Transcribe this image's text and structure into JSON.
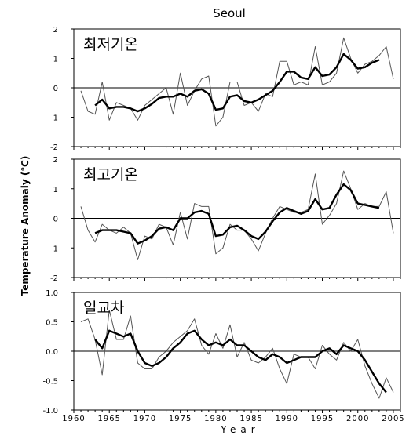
{
  "chart_data": {
    "type": "line",
    "title": "Seoul",
    "xlabel": "Year",
    "ylabel": "Temperature Anomaly (℃)",
    "x_ticks": [
      "1960",
      "1965",
      "1970",
      "1975",
      "1980",
      "1985",
      "1990",
      "1995",
      "2000",
      "2005"
    ],
    "xlim": [
      1960,
      2006
    ],
    "panels": [
      {
        "label": "최저기온",
        "ylim": [
          -2,
          2
        ],
        "y_ticks": [
          "2",
          "1",
          "0",
          "-1",
          "-2"
        ],
        "series": [
          {
            "style": "raw",
            "x": [
              1961,
              1962,
              1963,
              1964,
              1965,
              1966,
              1967,
              1968,
              1969,
              1970,
              1971,
              1972,
              1973,
              1974,
              1975,
              1976,
              1977,
              1978,
              1979,
              1980,
              1981,
              1982,
              1983,
              1984,
              1985,
              1986,
              1987,
              1988,
              1989,
              1990,
              1991,
              1992,
              1993,
              1994,
              1995,
              1996,
              1997,
              1998,
              1999,
              2000,
              2001,
              2002,
              2003,
              2004,
              2005
            ],
            "y": [
              -0.1,
              -0.8,
              -0.9,
              0.2,
              -1.1,
              -0.5,
              -0.6,
              -0.7,
              -1.1,
              -0.6,
              -0.4,
              -0.2,
              0.0,
              -0.9,
              0.5,
              -0.6,
              -0.1,
              0.3,
              0.4,
              -1.3,
              -1.0,
              0.2,
              0.2,
              -0.6,
              -0.5,
              -0.8,
              -0.2,
              -0.3,
              0.9,
              0.9,
              0.1,
              0.2,
              0.1,
              1.4,
              0.1,
              0.2,
              0.5,
              1.7,
              1.0,
              0.5,
              0.8,
              0.9,
              1.1,
              1.4,
              0.3
            ]
          },
          {
            "style": "smoothed",
            "x": [
              1963,
              1964,
              1965,
              1966,
              1967,
              1968,
              1969,
              1970,
              1971,
              1972,
              1973,
              1974,
              1975,
              1976,
              1977,
              1978,
              1979,
              1980,
              1981,
              1982,
              1983,
              1984,
              1985,
              1986,
              1987,
              1988,
              1989,
              1990,
              1991,
              1992,
              1993,
              1994,
              1995,
              1996,
              1997,
              1998,
              1999,
              2000,
              2001,
              2002,
              2003
            ],
            "y": [
              -0.6,
              -0.4,
              -0.7,
              -0.65,
              -0.65,
              -0.7,
              -0.8,
              -0.7,
              -0.55,
              -0.35,
              -0.3,
              -0.3,
              -0.2,
              -0.3,
              -0.1,
              -0.05,
              -0.2,
              -0.75,
              -0.7,
              -0.3,
              -0.25,
              -0.45,
              -0.5,
              -0.4,
              -0.25,
              -0.1,
              0.2,
              0.55,
              0.55,
              0.35,
              0.3,
              0.7,
              0.4,
              0.45,
              0.7,
              1.15,
              0.95,
              0.65,
              0.7,
              0.85,
              0.95
            ]
          }
        ]
      },
      {
        "label": "최고기온",
        "ylim": [
          -2,
          2
        ],
        "y_ticks": [
          "2",
          "1",
          "0",
          "-1",
          "-2"
        ],
        "series": [
          {
            "style": "raw",
            "x": [
              1961,
              1962,
              1963,
              1964,
              1965,
              1966,
              1967,
              1968,
              1969,
              1970,
              1971,
              1972,
              1973,
              1974,
              1975,
              1976,
              1977,
              1978,
              1979,
              1980,
              1981,
              1982,
              1983,
              1984,
              1985,
              1986,
              1987,
              1988,
              1989,
              1990,
              1991,
              1992,
              1993,
              1994,
              1995,
              1996,
              1997,
              1998,
              1999,
              2000,
              2001,
              2002,
              2003,
              2004,
              2005
            ],
            "y": [
              0.4,
              -0.4,
              -0.8,
              -0.2,
              -0.4,
              -0.5,
              -0.3,
              -0.5,
              -1.4,
              -0.6,
              -0.7,
              -0.2,
              -0.3,
              -0.9,
              0.2,
              -0.7,
              0.5,
              0.4,
              0.4,
              -1.2,
              -1.0,
              -0.2,
              -0.4,
              -0.4,
              -0.7,
              -1.1,
              -0.5,
              0.0,
              0.4,
              0.3,
              0.2,
              0.2,
              0.3,
              1.5,
              -0.2,
              0.1,
              0.5,
              1.6,
              1.0,
              0.3,
              0.5,
              0.4,
              0.4,
              0.9,
              -0.5
            ]
          },
          {
            "style": "smoothed",
            "x": [
              1963,
              1964,
              1965,
              1966,
              1967,
              1968,
              1969,
              1970,
              1971,
              1972,
              1973,
              1974,
              1975,
              1976,
              1977,
              1978,
              1979,
              1980,
              1981,
              1982,
              1983,
              1984,
              1985,
              1986,
              1987,
              1988,
              1989,
              1990,
              1991,
              1992,
              1993,
              1994,
              1995,
              1996,
              1997,
              1998,
              1999,
              2000,
              2001,
              2002,
              2003
            ],
            "y": [
              -0.5,
              -0.4,
              -0.4,
              -0.4,
              -0.45,
              -0.5,
              -0.85,
              -0.75,
              -0.6,
              -0.35,
              -0.3,
              -0.4,
              0.0,
              0.0,
              0.2,
              0.25,
              0.15,
              -0.6,
              -0.55,
              -0.3,
              -0.25,
              -0.4,
              -0.6,
              -0.7,
              -0.45,
              -0.1,
              0.2,
              0.35,
              0.25,
              0.15,
              0.25,
              0.65,
              0.3,
              0.35,
              0.8,
              1.15,
              0.95,
              0.5,
              0.45,
              0.4,
              0.35
            ]
          }
        ]
      },
      {
        "label": "일교차",
        "ylim": [
          -1.0,
          1.0
        ],
        "y_ticks": [
          "1.0",
          "0.5",
          "0.0",
          "-0.5",
          "-1.0"
        ],
        "series": [
          {
            "style": "raw",
            "x": [
              1961,
              1962,
              1963,
              1964,
              1965,
              1966,
              1967,
              1968,
              1969,
              1970,
              1971,
              1972,
              1973,
              1974,
              1975,
              1976,
              1977,
              1978,
              1979,
              1980,
              1981,
              1982,
              1983,
              1984,
              1985,
              1986,
              1987,
              1988,
              1989,
              1990,
              1991,
              1992,
              1993,
              1994,
              1995,
              1996,
              1997,
              1998,
              1999,
              2000,
              2001,
              2002,
              2003,
              2004,
              2005
            ],
            "y": [
              0.5,
              0.55,
              0.2,
              -0.4,
              0.7,
              0.2,
              0.2,
              0.6,
              -0.2,
              -0.3,
              -0.3,
              -0.1,
              0.0,
              0.15,
              0.25,
              0.35,
              0.55,
              0.1,
              -0.05,
              0.3,
              0.05,
              0.45,
              -0.1,
              0.15,
              -0.15,
              -0.2,
              -0.1,
              0.05,
              -0.3,
              -0.55,
              -0.05,
              -0.1,
              -0.1,
              -0.3,
              0.1,
              -0.05,
              -0.15,
              0.15,
              0.0,
              0.2,
              -0.25,
              -0.55,
              -0.8,
              -0.45,
              -0.7
            ]
          },
          {
            "style": "smoothed",
            "x": [
              1963,
              1964,
              1965,
              1966,
              1967,
              1968,
              1969,
              1970,
              1971,
              1972,
              1973,
              1974,
              1975,
              1976,
              1977,
              1978,
              1979,
              1980,
              1981,
              1982,
              1983,
              1984,
              1985,
              1986,
              1987,
              1988,
              1989,
              1990,
              1991,
              1992,
              1993,
              1994,
              1995,
              1996,
              1997,
              1998,
              1999,
              2000,
              2001,
              2002,
              2003,
              2004
            ],
            "y": [
              0.2,
              0.05,
              0.35,
              0.3,
              0.25,
              0.3,
              0.0,
              -0.2,
              -0.25,
              -0.2,
              -0.1,
              0.05,
              0.15,
              0.3,
              0.35,
              0.2,
              0.1,
              0.15,
              0.1,
              0.2,
              0.1,
              0.1,
              0.0,
              -0.1,
              -0.15,
              -0.05,
              -0.1,
              -0.2,
              -0.15,
              -0.1,
              -0.1,
              -0.1,
              0.0,
              0.05,
              -0.05,
              0.1,
              0.05,
              0.0,
              -0.15,
              -0.35,
              -0.55,
              -0.7
            ]
          }
        ]
      }
    ]
  }
}
